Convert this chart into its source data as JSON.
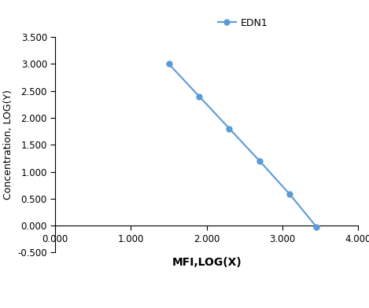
{
  "x": [
    1.5,
    1.9,
    2.3,
    2.7,
    3.1,
    3.45
  ],
  "y": [
    3.0,
    2.4,
    1.8,
    1.2,
    0.58,
    -0.02
  ],
  "line_color": "#5B9BD5",
  "marker_color": "#5B9BD5",
  "marker_style": "o",
  "marker_size": 5,
  "line_width": 1.5,
  "xlabel": "MFI,LOG(X)",
  "ylabel": "Concentration, LOG(Y)",
  "legend_label": "EDN1",
  "xlim": [
    0.0,
    4.0
  ],
  "ylim": [
    -0.5,
    3.5
  ],
  "xticks": [
    0.0,
    1.0,
    2.0,
    3.0,
    4.0
  ],
  "yticks": [
    -0.5,
    0.0,
    0.5,
    1.0,
    1.5,
    2.0,
    2.5,
    3.0,
    3.5
  ],
  "xlabel_fontsize": 10,
  "ylabel_fontsize": 9,
  "tick_fontsize": 8.5,
  "legend_fontsize": 9,
  "background_color": "#ffffff",
  "grid": false
}
